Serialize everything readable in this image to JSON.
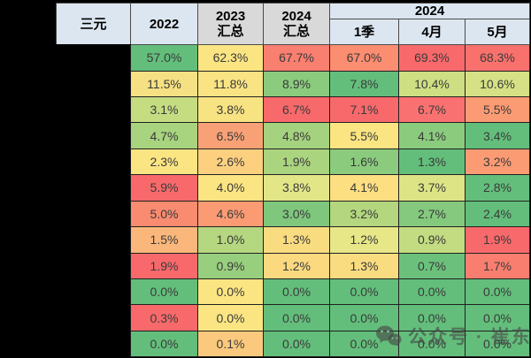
{
  "chart_data": {
    "type": "table",
    "title": "三元",
    "corner_label": "三元",
    "columns": [
      "2022",
      "2023 汇总",
      "2024 汇总"
    ],
    "group_label": "2024",
    "group_columns": [
      "1季",
      "4月",
      "5月"
    ],
    "unit": "%",
    "rows": [
      [
        "57.0%",
        "62.3%",
        "67.7%",
        "67.0%",
        "69.3%",
        "68.3%"
      ],
      [
        "11.5%",
        "11.8%",
        "8.9%",
        "7.8%",
        "10.4%",
        "10.6%"
      ],
      [
        "3.1%",
        "3.8%",
        "6.7%",
        "7.1%",
        "6.7%",
        "5.5%"
      ],
      [
        "4.7%",
        "6.5%",
        "4.8%",
        "5.5%",
        "4.1%",
        "3.4%"
      ],
      [
        "2.3%",
        "2.6%",
        "1.9%",
        "1.6%",
        "1.3%",
        "3.2%"
      ],
      [
        "5.9%",
        "4.0%",
        "3.8%",
        "4.1%",
        "3.7%",
        "2.8%"
      ],
      [
        "5.0%",
        "4.6%",
        "3.0%",
        "3.2%",
        "2.7%",
        "2.4%"
      ],
      [
        "1.5%",
        "1.0%",
        "1.3%",
        "1.2%",
        "0.9%",
        "1.9%"
      ],
      [
        "1.9%",
        "0.9%",
        "1.2%",
        "1.3%",
        "0.7%",
        "1.7%"
      ],
      [
        "0.0%",
        "0.0%",
        "0.0%",
        "0.0%",
        "0.0%",
        "0.0%"
      ],
      [
        "0.3%",
        "0.0%",
        "0.0%",
        "0.0%",
        "0.0%",
        "0.0%"
      ],
      [
        "0.0%",
        "0.1%",
        "0.0%",
        "0.0%",
        "0.0%",
        "0.0%"
      ]
    ],
    "cell_colors": [
      [
        "#63BE7B",
        "#FBE583",
        "#F97F70",
        "#FB8D71",
        "#F8696B",
        "#F8716D"
      ],
      [
        "#F5E183",
        "#F9E383",
        "#8BCB7E",
        "#63BE7B",
        "#CDDF82",
        "#D5E184"
      ],
      [
        "#C5DC81",
        "#F8E383",
        "#F8696B",
        "#F8696B",
        "#F97170",
        "#FB9B74"
      ],
      [
        "#A8D37F",
        "#F9A176",
        "#A5D27E",
        "#FAE582",
        "#8BCB7E",
        "#63BE7B"
      ],
      [
        "#FBE583",
        "#FCD07F",
        "#ABD47E",
        "#8BCB7E",
        "#63BE7B",
        "#FA9B74"
      ],
      [
        "#F8696B",
        "#FBE583",
        "#E3E687",
        "#FBDF81",
        "#DDE486",
        "#63BE7B"
      ],
      [
        "#F98B70",
        "#FA9B74",
        "#7EC77D",
        "#B3D67F",
        "#84C97D",
        "#63BE7B"
      ],
      [
        "#FBB77B",
        "#B5D77F",
        "#FADC80",
        "#E7E788",
        "#C3DC81",
        "#F8696B"
      ],
      [
        "#F8696B",
        "#98CF7E",
        "#FAD97F",
        "#F9DC80",
        "#6BC17C",
        "#F97E70"
      ],
      [
        "#63BE7B",
        "#FBE583",
        "#63BE7B",
        "#63BE7B",
        "#63BE7B",
        "#63BE7B"
      ],
      [
        "#F8696B",
        "#FBE583",
        "#63BE7B",
        "#63BE7B",
        "#63BE7B",
        "#63BE7B"
      ],
      [
        "#63BE7B",
        "#FBC97D",
        "#63BE7B",
        "#63BE7B",
        "#63BE7B",
        "#63BE7B"
      ]
    ],
    "color_scale": {
      "low": "#63BE7B",
      "mid": "#FFE583",
      "high": "#F8696B"
    },
    "header_colors": {
      "blue": "#DCE6F1",
      "gray": "#D9D9D9"
    }
  },
  "watermark": {
    "text": "公众号 · 崔东树",
    "icon": "wechat-icon"
  }
}
